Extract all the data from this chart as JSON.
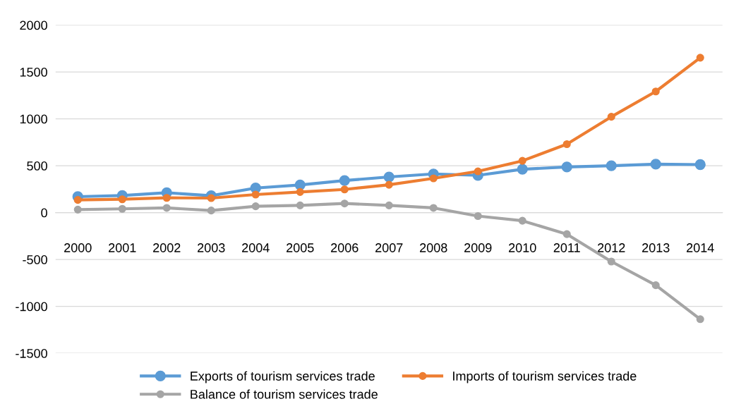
{
  "chart_data": {
    "type": "line",
    "categories": [
      "2000",
      "2001",
      "2002",
      "2003",
      "2004",
      "2005",
      "2006",
      "2007",
      "2008",
      "2009",
      "2010",
      "2011",
      "2012",
      "2013",
      "2014"
    ],
    "series": [
      {
        "name": "Exports of tourism services trade",
        "color": "#5b9bd5",
        "values": [
          170,
          182,
          212,
          180,
          262,
          295,
          342,
          380,
          412,
          397,
          462,
          487,
          500,
          517,
          512
        ]
      },
      {
        "name": "Imports of tourism services trade",
        "color": "#ed7d31",
        "values": [
          135,
          142,
          157,
          155,
          192,
          220,
          247,
          297,
          365,
          440,
          552,
          730,
          1022,
          1292,
          1652
        ]
      },
      {
        "name": "Balance of tourism services trade",
        "color": "#a5a5a5",
        "values": [
          32,
          40,
          50,
          22,
          67,
          77,
          97,
          77,
          50,
          -37,
          -87,
          -230,
          -522,
          -775,
          -1137
        ]
      }
    ],
    "ylim": [
      -1500,
      2000
    ],
    "yticks": [
      -1500,
      -1000,
      -500,
      0,
      500,
      1000,
      1500,
      2000
    ],
    "grid": "y",
    "legend": "bottom",
    "marker": "circle",
    "line_style": "solid"
  }
}
